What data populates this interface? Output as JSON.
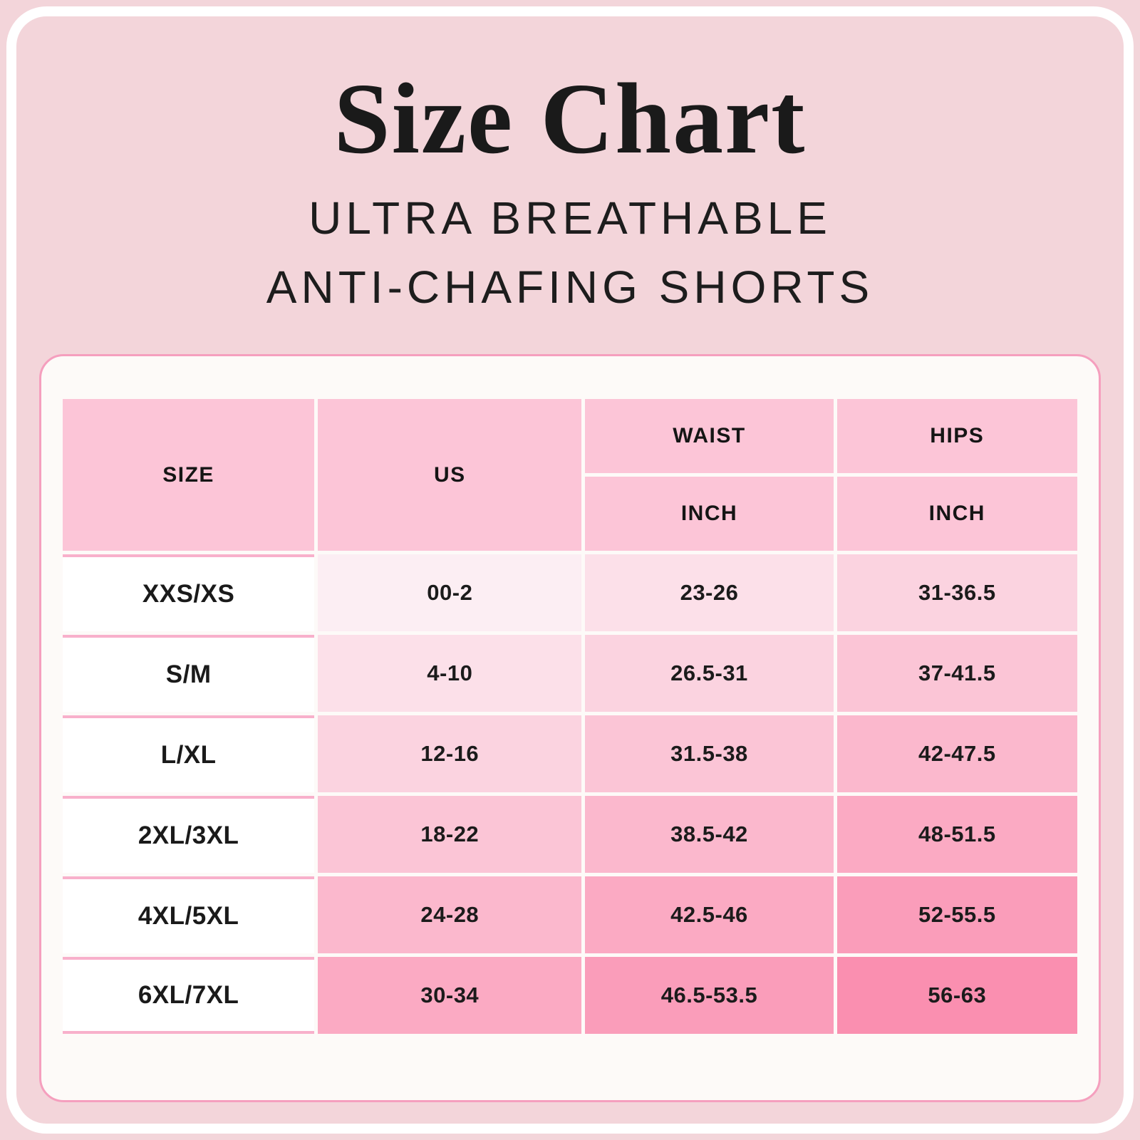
{
  "chart_data": {
    "type": "table",
    "title": "Size Chart",
    "subtitle_lines": [
      "ULTRA BREATHABLE",
      "ANTI-CHAFING SHORTS"
    ],
    "column_headers": {
      "size": "SIZE",
      "us": "US",
      "waist": "WAIST",
      "hips": "HIPS",
      "waist_unit": "INCH",
      "hips_unit": "INCH"
    },
    "rows": [
      {
        "size": "XXS/XS",
        "us": "00-2",
        "waist": "23-26",
        "hips": "31-36.5"
      },
      {
        "size": "S/M",
        "us": "4-10",
        "waist": "26.5-31",
        "hips": "37-41.5"
      },
      {
        "size": "L/XL",
        "us": "12-16",
        "waist": "31.5-38",
        "hips": "42-47.5"
      },
      {
        "size": "2XL/3XL",
        "us": "18-22",
        "waist": "38.5-42",
        "hips": "48-51.5"
      },
      {
        "size": "4XL/5XL",
        "us": "24-28",
        "waist": "42.5-46",
        "hips": "52-55.5"
      },
      {
        "size": "6XL/7XL",
        "us": "30-34",
        "waist": "46.5-53.5",
        "hips": "56-63"
      }
    ],
    "cell_colors": [
      [
        "#FCEEF3",
        "#FCE0E9",
        "#FBD3E0"
      ],
      [
        "#FCE0E9",
        "#FBD3E0",
        "#FBC5D6"
      ],
      [
        "#FBD3E0",
        "#FBC5D6",
        "#FBB8CD"
      ],
      [
        "#FBC5D6",
        "#FBB8CD",
        "#FBAAC3"
      ],
      [
        "#FBB8CD",
        "#FBAAC3",
        "#FA9DBA"
      ],
      [
        "#FBAAC3",
        "#FA9DBA",
        "#FA8FB0"
      ]
    ],
    "layout": {
      "unit": "inches",
      "grid": "white gridlines, diagonal pink gradient body"
    }
  },
  "colors": {
    "page_bg": "#F3D5DA",
    "frame_stroke": "#FFFFFF",
    "card_bg": "#FDFAF8",
    "card_border": "#F59FBE",
    "header_cell_bg": "#FCC5D7",
    "size_cell_bg": "#FFFFFF",
    "row_divider": "#F8B0CB",
    "text": "#1A1A1A"
  }
}
